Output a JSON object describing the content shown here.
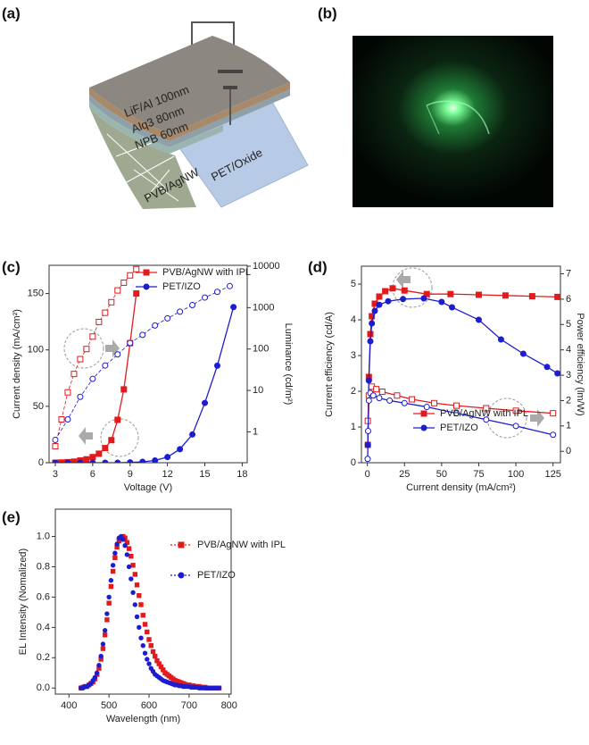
{
  "panel_labels": [
    "(a)",
    "(b)",
    "(c)",
    "(d)",
    "(e)"
  ],
  "diagram": {
    "layers": [
      "LiF/Al  100nm",
      "Alq3  80nm",
      "NPB  60nm",
      "PVB/AgNW",
      "PET/Oxide"
    ]
  },
  "chart_data": [
    {
      "type": "line",
      "x_label": "Voltage (V)",
      "y_label": "Current density (mA/cm²)",
      "y2_label": "Luminance (cd/m²)",
      "xlim": [
        2.5,
        18.4
      ],
      "xticks": [
        3,
        6,
        9,
        12,
        15,
        18
      ],
      "ylim": [
        0,
        175
      ],
      "yticks": [
        0,
        50,
        100,
        150
      ],
      "y2lim": [
        0.18,
        10500
      ],
      "y2ticks": [
        1,
        10,
        100,
        1000,
        10000
      ],
      "y2_log": true,
      "legend": "upper right",
      "series": [
        {
          "name": "PVB/AgNW with IPL",
          "color": "#e31a1c",
          "marker": "square",
          "filled": true,
          "line_style": "solid",
          "x": [
            3,
            3.5,
            4,
            4.5,
            5,
            5.5,
            6,
            6.5,
            7,
            7.5,
            8,
            8.5,
            9,
            9.5
          ],
          "values": [
            0,
            0.2,
            0.5,
            1,
            2,
            3,
            5,
            8,
            13,
            20,
            38,
            65,
            106,
            150
          ]
        },
        {
          "name": "PET/IZO",
          "color": "#1c1cd0",
          "marker": "circle",
          "filled": true,
          "line_style": "solid",
          "x": [
            3,
            4,
            5,
            6,
            7,
            8,
            9,
            10,
            11,
            12,
            13,
            14,
            15,
            16,
            17.3
          ],
          "values": [
            0,
            0,
            0,
            0,
            0,
            0,
            0.3,
            0.8,
            2,
            5,
            12,
            25,
            53,
            86,
            138
          ]
        },
        {
          "color": "#e31a1c",
          "marker": "square",
          "filled": false,
          "line_style": "dashed",
          "axis": "y2",
          "x": [
            3,
            3.5,
            4,
            4.5,
            5,
            5.5,
            6,
            6.5,
            7,
            7.5,
            8,
            8.5,
            9,
            9.5
          ],
          "values": [
            0.45,
            2,
            9,
            25,
            57,
            100,
            200,
            450,
            750,
            1350,
            2600,
            4000,
            6000,
            8500
          ]
        },
        {
          "color": "#1c1cd0",
          "marker": "circle",
          "filled": false,
          "line_style": "dashed",
          "axis": "y2",
          "x": [
            3,
            4,
            5,
            6,
            7,
            8,
            9,
            10,
            11,
            12,
            13,
            14,
            15,
            16,
            17
          ],
          "values": [
            0.64,
            2,
            7,
            19,
            40,
            74,
            140,
            220,
            370,
            550,
            800,
            1150,
            1750,
            2400,
            3300
          ]
        }
      ]
    },
    {
      "type": "line",
      "x_label": "Current density (mA/cm²)",
      "y_label": "Current efficiency (cd/A)",
      "y2_label": "Power efficiency (lm/W)",
      "xlim": [
        -4,
        130
      ],
      "xticks": [
        0,
        25,
        50,
        75,
        100,
        125
      ],
      "ylim": [
        0,
        5.5
      ],
      "yticks": [
        0,
        1,
        2,
        3,
        4,
        5
      ],
      "y2lim": [
        -0.45,
        7.3
      ],
      "y2ticks": [
        0,
        1,
        2,
        3,
        4,
        5,
        6,
        7
      ],
      "y2_log": false,
      "legend": "lower right",
      "series": [
        {
          "name": "PVB/AgNW with IPL",
          "color": "#e31a1c",
          "marker": "square",
          "filled": true,
          "line_style": "solid",
          "x": [
            0.3,
            1,
            2,
            3,
            5,
            8,
            12,
            17,
            25,
            40,
            56,
            75,
            93,
            111,
            128
          ],
          "values": [
            0.5,
            2.4,
            3.6,
            4.1,
            4.45,
            4.65,
            4.8,
            4.88,
            4.82,
            4.72,
            4.72,
            4.7,
            4.68,
            4.66,
            4.64
          ]
        },
        {
          "name": "PET/IZO",
          "color": "#1c1cd0",
          "marker": "circle",
          "filled": true,
          "line_style": "solid",
          "x": [
            0.3,
            1,
            2,
            3,
            5,
            8,
            14,
            24,
            38,
            50,
            57,
            75,
            90,
            105,
            121,
            128
          ],
          "values": [
            0.5,
            2.3,
            3.4,
            3.9,
            4.25,
            4.42,
            4.52,
            4.58,
            4.6,
            4.5,
            4.35,
            4.0,
            3.45,
            3.05,
            2.68,
            2.5
          ]
        },
        {
          "color": "#e31a1c",
          "marker": "square",
          "filled": false,
          "line_style": "solid",
          "axis": "y2",
          "x": [
            0.3,
            1,
            3,
            6,
            10,
            20,
            30,
            45,
            60,
            80,
            100,
            125
          ],
          "values": [
            1.2,
            2.2,
            2.55,
            2.45,
            2.35,
            2.2,
            2.05,
            1.9,
            1.8,
            1.7,
            1.6,
            1.5
          ]
        },
        {
          "color": "#1c1cd0",
          "marker": "circle",
          "filled": false,
          "line_style": "solid",
          "axis": "y2",
          "x": [
            0.2,
            0.5,
            1,
            2,
            4,
            8,
            15,
            25,
            40,
            60,
            80,
            100,
            125
          ],
          "values": [
            -0.3,
            0.8,
            2.0,
            2.3,
            2.2,
            2.1,
            2.0,
            1.9,
            1.75,
            1.5,
            1.25,
            1.0,
            0.65
          ]
        }
      ]
    },
    {
      "type": "scatter",
      "x_label": "Wavelength (nm)",
      "y_label": "EL Intensity (Nomalized)",
      "xlim": [
        366,
        805
      ],
      "xticks": [
        400,
        500,
        600,
        700,
        800
      ],
      "ylim": [
        -0.04,
        1.18
      ],
      "yticks": [
        {
          "value": 0,
          "label": "0.0"
        },
        {
          "value": 0.2,
          "label": "0.2"
        },
        {
          "value": 0.4,
          "label": "0.4"
        },
        {
          "value": 0.6,
          "label": "0.6"
        },
        {
          "value": 0.8,
          "label": "0.8"
        },
        {
          "value": 1,
          "label": "1.0"
        }
      ],
      "legend": "right",
      "x": [
        430,
        435,
        440,
        445,
        450,
        455,
        460,
        465,
        470,
        475,
        480,
        485,
        490,
        495,
        500,
        505,
        510,
        515,
        520,
        525,
        530,
        535,
        540,
        545,
        550,
        555,
        560,
        565,
        570,
        575,
        580,
        585,
        590,
        595,
        600,
        605,
        610,
        615,
        620,
        625,
        630,
        635,
        640,
        645,
        650,
        655,
        660,
        665,
        670,
        675,
        680,
        685,
        690,
        695,
        700,
        705,
        710,
        715,
        720,
        725,
        730,
        735,
        740,
        745,
        750,
        755,
        760,
        765,
        770,
        775
      ],
      "series": [
        {
          "name": "PVB/AgNW with IPL",
          "color": "#e31a1c",
          "marker": "square",
          "filled": true,
          "values": [
            0,
            0.005,
            0.01,
            0.01,
            0.02,
            0.03,
            0.04,
            0.06,
            0.09,
            0.13,
            0.19,
            0.26,
            0.35,
            0.45,
            0.56,
            0.67,
            0.77,
            0.86,
            0.93,
            0.97,
            0.99,
            1.0,
            0.99,
            0.96,
            0.92,
            0.87,
            0.81,
            0.75,
            0.68,
            0.61,
            0.55,
            0.48,
            0.42,
            0.37,
            0.32,
            0.28,
            0.24,
            0.21,
            0.18,
            0.16,
            0.14,
            0.12,
            0.1,
            0.09,
            0.08,
            0.07,
            0.06,
            0.05,
            0.045,
            0.04,
            0.035,
            0.03,
            0.025,
            0.02,
            0.02,
            0.015,
            0.015,
            0.01,
            0.01,
            0.01,
            0.005,
            0.005,
            0.005,
            0,
            0,
            0,
            0,
            0,
            0,
            0
          ]
        },
        {
          "name": "PET/IZO",
          "color": "#1c1cd0",
          "marker": "circle",
          "filled": true,
          "values": [
            0,
            0,
            0.01,
            0.01,
            0.02,
            0.03,
            0.05,
            0.07,
            0.1,
            0.15,
            0.21,
            0.29,
            0.38,
            0.49,
            0.6,
            0.71,
            0.81,
            0.89,
            0.95,
            0.99,
            1.0,
            0.98,
            0.94,
            0.88,
            0.8,
            0.72,
            0.63,
            0.55,
            0.47,
            0.4,
            0.33,
            0.28,
            0.23,
            0.19,
            0.16,
            0.13,
            0.11,
            0.09,
            0.08,
            0.07,
            0.06,
            0.05,
            0.045,
            0.04,
            0.035,
            0.03,
            0.025,
            0.02,
            0.02,
            0.015,
            0.015,
            0.01,
            0.01,
            0.01,
            0.01,
            0.005,
            0.005,
            0.005,
            0.005,
            0,
            0,
            0,
            0,
            0,
            0,
            0,
            0,
            0,
            0,
            0
          ]
        }
      ]
    }
  ]
}
